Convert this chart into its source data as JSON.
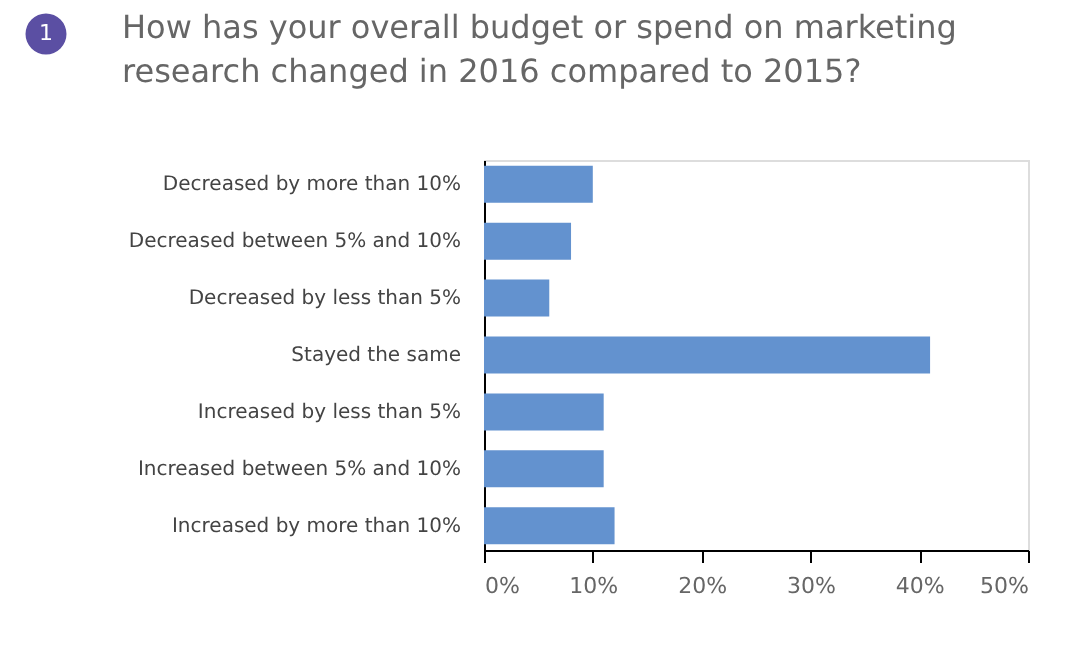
{
  "chart_data": {
    "type": "bar",
    "orientation": "horizontal",
    "title": "How has your overall budget or spend on marketing\nresearch changed in 2016 compared to 2015?",
    "annotations": [
      "1"
    ],
    "categories": [
      "Decreased by more than 10%",
      "Decreased between 5% and 10%",
      "Decreased by less than 5%",
      "Stayed the same",
      "Increased by less than 5%",
      "Increased between 5% and 10%",
      "Increased by more than 10%"
    ],
    "values": [
      10,
      8,
      6,
      41,
      11,
      11,
      12
    ],
    "color": "#6392cf",
    "xlim": [
      0,
      50
    ],
    "xticks": [
      {
        "value": 0,
        "label": "0%"
      },
      {
        "value": 10,
        "label": "10%"
      },
      {
        "value": 20,
        "label": "20%"
      },
      {
        "value": 30,
        "label": "30%"
      },
      {
        "value": 40,
        "label": "40%"
      },
      {
        "value": 50,
        "label": "50%"
      }
    ],
    "grid": false,
    "legend": false
  }
}
